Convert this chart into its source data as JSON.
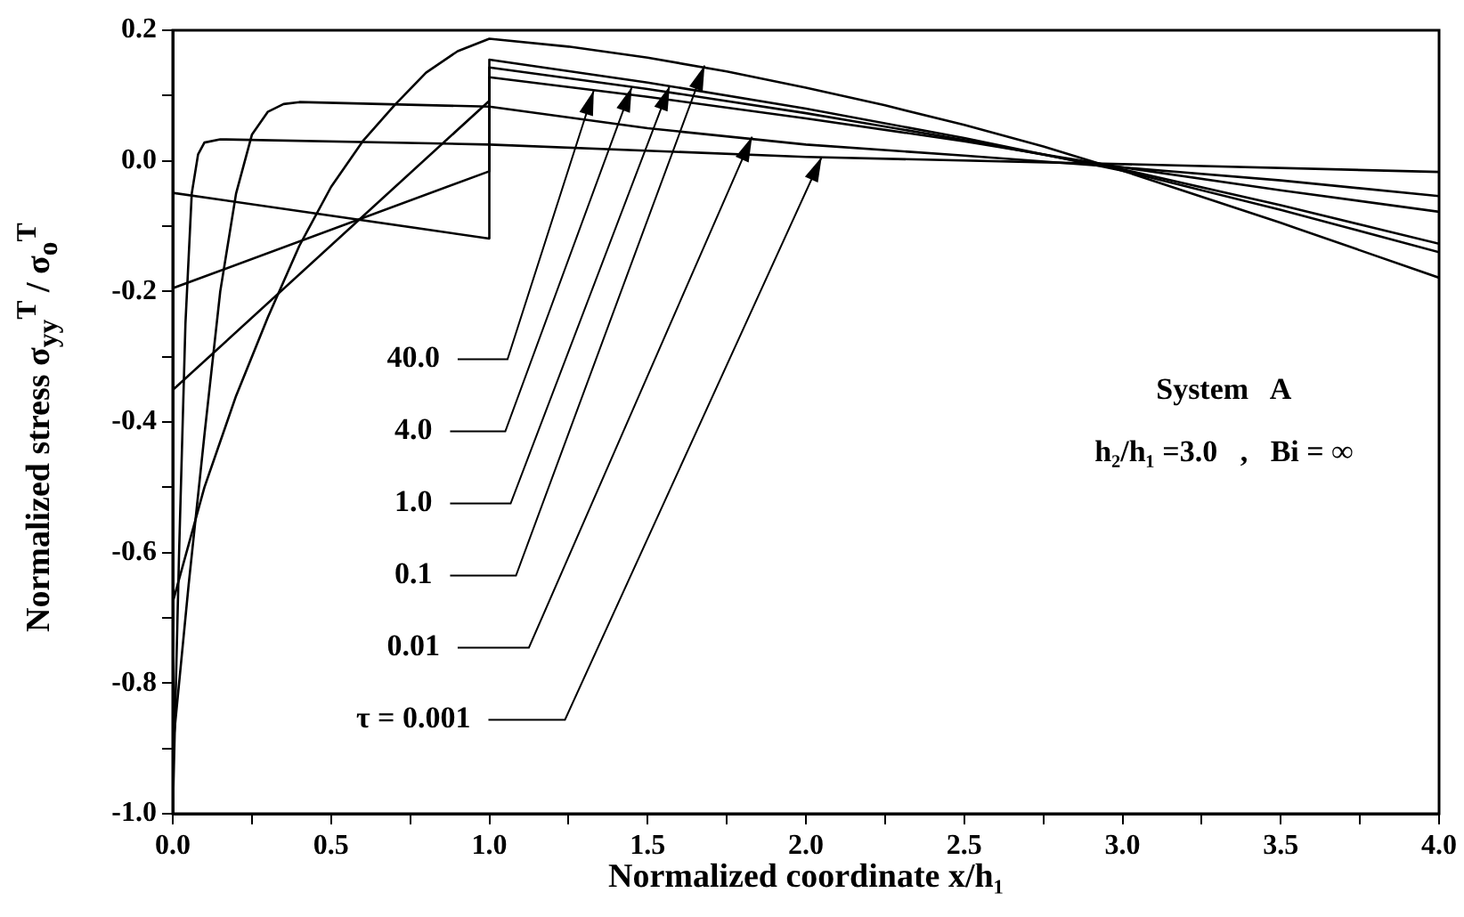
{
  "chart_data": {
    "type": "line",
    "xlabel": "Normalized coordinate x/h₁",
    "ylabel": "Normalized stress σ$_{yy}$$^{T}$ / σ$_{o}$$^{T}$",
    "xlim": [
      0,
      4
    ],
    "ylim": [
      -1,
      0.2
    ],
    "xticks": [
      {
        "value": 0,
        "label": "0.0"
      },
      {
        "value": 0.25,
        "label": null
      },
      {
        "value": 0.5,
        "label": "0.5"
      },
      {
        "value": 0.75,
        "label": null
      },
      {
        "value": 1,
        "label": "1.0"
      },
      {
        "value": 1.25,
        "label": null
      },
      {
        "value": 1.5,
        "label": "1.5"
      },
      {
        "value": 1.75,
        "label": null
      },
      {
        "value": 2,
        "label": "2.0"
      },
      {
        "value": 2.25,
        "label": null
      },
      {
        "value": 2.5,
        "label": "2.5"
      },
      {
        "value": 2.75,
        "label": null
      },
      {
        "value": 3,
        "label": "3.0"
      },
      {
        "value": 3.25,
        "label": null
      },
      {
        "value": 3.5,
        "label": "3.5"
      },
      {
        "value": 3.75,
        "label": null
      },
      {
        "value": 4,
        "label": "4.0"
      }
    ],
    "yticks": [
      {
        "value": -1,
        "label": "-1.0"
      },
      {
        "value": -0.9,
        "label": null
      },
      {
        "value": -0.8,
        "label": "-0.8"
      },
      {
        "value": -0.7,
        "label": null
      },
      {
        "value": -0.6,
        "label": "-0.6"
      },
      {
        "value": -0.5,
        "label": null
      },
      {
        "value": -0.4,
        "label": "-0.4"
      },
      {
        "value": -0.3,
        "label": null
      },
      {
        "value": -0.2,
        "label": "-0.2"
      },
      {
        "value": -0.1,
        "label": null
      },
      {
        "value": 0,
        "label": "0.0"
      },
      {
        "value": 0.1,
        "label": null
      },
      {
        "value": 0.2,
        "label": "0.2"
      }
    ],
    "grid": false,
    "legend": false,
    "marker": "none",
    "series": [
      {
        "color": "#000000",
        "x": [
          0,
          1,
          1,
          1.5,
          2,
          2.5,
          3,
          3.5,
          4
        ],
        "values": [
          -0.049,
          -0.119,
          0.128,
          0.098,
          0.065,
          0.03,
          -0.01,
          -0.045,
          -0.078
        ]
      },
      {
        "color": "#000000",
        "x": [
          0,
          1,
          1,
          1.5,
          2,
          2.5,
          3,
          3.5,
          4
        ],
        "values": [
          -0.195,
          -0.016,
          0.143,
          0.11,
          0.073,
          0.032,
          -0.013,
          -0.068,
          -0.127
        ]
      },
      {
        "color": "#000000",
        "x": [
          0,
          1,
          1,
          1.5,
          2,
          2.5,
          3,
          3.5,
          4
        ],
        "values": [
          -0.351,
          0.092,
          0.155,
          0.12,
          0.08,
          0.035,
          -0.015,
          -0.075,
          -0.14
        ]
      },
      {
        "color": "#000000",
        "x": [
          0,
          0.1,
          0.2,
          0.3,
          0.4,
          0.5,
          0.6,
          0.7,
          0.8,
          0.9,
          1,
          1.25,
          1.5,
          1.75,
          2,
          2.25,
          2.5,
          2.75,
          3,
          3.25,
          3.5,
          3.75,
          4
        ],
        "values": [
          -0.676,
          -0.5,
          -0.36,
          -0.24,
          -0.13,
          -0.04,
          0.03,
          0.085,
          0.135,
          0.168,
          0.187,
          0.175,
          0.158,
          0.137,
          0.112,
          0.085,
          0.055,
          0.022,
          -0.015,
          -0.055,
          -0.095,
          -0.137,
          -0.179
        ]
      },
      {
        "color": "#000000",
        "x": [
          0,
          0.05,
          0.1,
          0.15,
          0.2,
          0.25,
          0.3,
          0.35,
          0.4,
          1,
          1.5,
          2,
          2.5,
          3,
          3.5,
          4
        ],
        "values": [
          -0.9,
          -0.65,
          -0.42,
          -0.2,
          -0.05,
          0.04,
          0.075,
          0.087,
          0.09,
          0.083,
          0.05,
          0.025,
          0.008,
          -0.01,
          -0.03,
          -0.054
        ]
      },
      {
        "color": "#000000",
        "x": [
          0,
          0.02,
          0.04,
          0.06,
          0.08,
          0.1,
          0.15,
          1,
          2,
          3,
          4
        ],
        "values": [
          -1,
          -0.6,
          -0.25,
          -0.05,
          0.01,
          0.028,
          0.033,
          0.025,
          0.006,
          -0.005,
          -0.017
        ]
      }
    ],
    "annotations": [
      {
        "text": "40.0",
        "x": 1.33,
        "y": 0.108
      },
      {
        "text": "4.0",
        "x": 1.45,
        "y": 0.113
      },
      {
        "text": "1.0",
        "x": 1.57,
        "y": 0.115
      },
      {
        "text": "0.1",
        "x": 1.68,
        "y": 0.146
      },
      {
        "text": "0.01",
        "x": 1.83,
        "y": 0.037
      },
      {
        "text": "τ = 0.001",
        "x": 2.05,
        "y": 0.006
      },
      "System   A",
      "h₂/h₁ =3.0   ,   Bi = ∞"
    ]
  }
}
